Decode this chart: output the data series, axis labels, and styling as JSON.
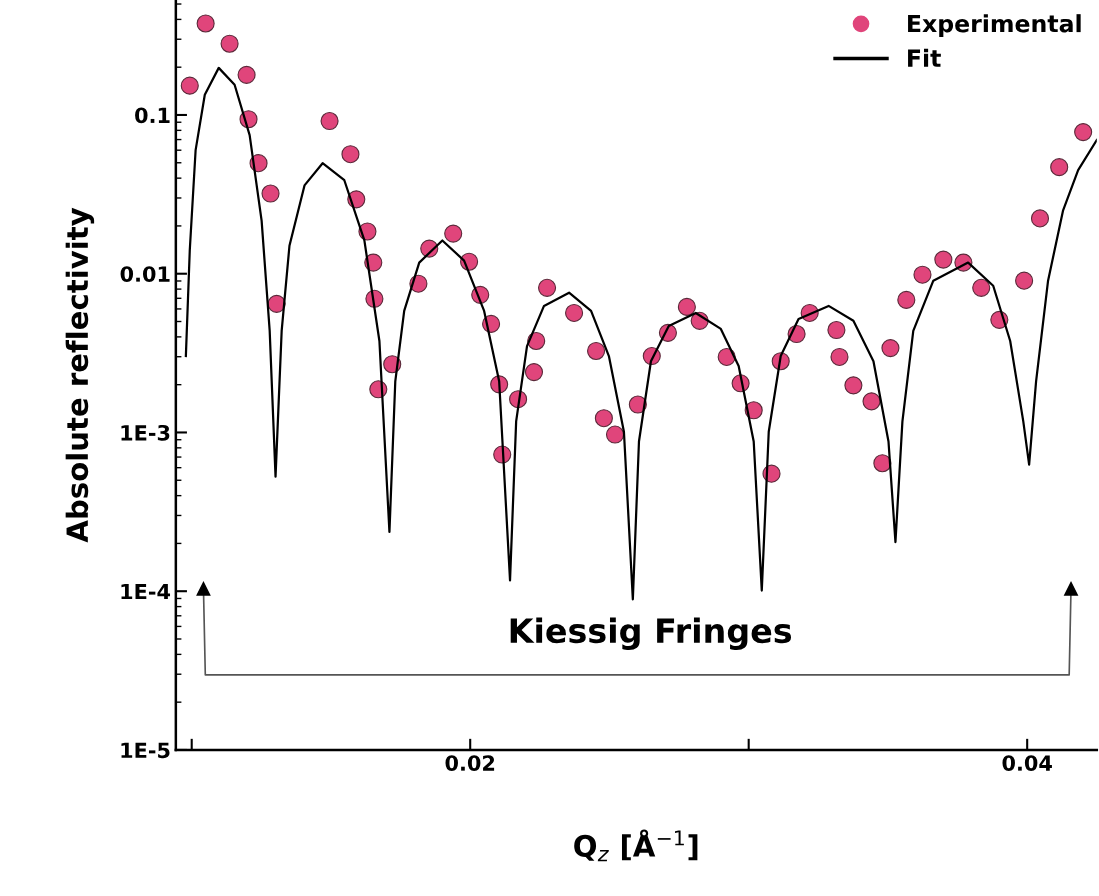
{
  "chart_data": {
    "type": "scatter",
    "xlabel": "Q$_{z}$ [Å$^{−1}$]",
    "ylabel": "Absolute reflectivity",
    "annotations": [
      "Kiessig Fringes"
    ],
    "log": "y",
    "xlim": [
      0.00943,
      0.0425
    ],
    "ylim": [
      1e-05,
      0.53
    ],
    "xticks": [
      {
        "value": 0.01,
        "label": null
      },
      0.02,
      {
        "value": 0.03,
        "label": null
      },
      0.04
    ],
    "yticks": [
      {
        "value": 1e-05,
        "label": "1E-5"
      },
      {
        "value": 0.0001,
        "label": "1E-4"
      },
      {
        "value": 0.001,
        "label": "1E-3"
      },
      0.01,
      0.1
    ],
    "grid": false,
    "legend": "top right",
    "marker": "circle",
    "series": [
      {
        "name": "Experimental",
        "color": "#e0457b",
        "x": [
          0.00993,
          0.0105,
          0.01136,
          0.01197,
          0.01204,
          0.0124,
          0.01283,
          0.01305,
          0.01495,
          0.0157,
          0.01591,
          0.01631,
          0.01652,
          0.01656,
          0.0167,
          0.0172,
          0.01814,
          0.01853,
          0.01939,
          0.01996,
          0.02036,
          0.02075,
          0.02104,
          0.02115,
          0.02172,
          0.02229,
          0.02237,
          0.02276,
          0.02373,
          0.02452,
          0.0248,
          0.0252,
          0.02602,
          0.02652,
          0.0271,
          0.02778,
          0.02824,
          0.02921,
          0.02971,
          0.03018,
          0.03082,
          0.03115,
          0.03172,
          0.03219,
          0.03315,
          0.03326,
          0.03376,
          0.03441,
          0.0348,
          0.03509,
          0.03566,
          0.03624,
          0.03699,
          0.03771,
          0.03835,
          0.039,
          0.03989,
          0.04046,
          0.04115,
          0.04201
        ],
        "values": [
          0.153,
          0.377,
          0.281,
          0.179,
          0.094,
          0.0497,
          0.032,
          0.00646,
          0.0916,
          0.0566,
          0.0294,
          0.01845,
          0.01175,
          0.00695,
          0.00187,
          0.00269,
          0.00865,
          0.0144,
          0.0179,
          0.0119,
          0.00736,
          0.00483,
          0.00201,
          0.000726,
          0.00162,
          0.0024,
          0.00377,
          0.00815,
          0.00566,
          0.00326,
          0.00123,
          0.00097,
          0.0015,
          0.00303,
          0.00424,
          0.00618,
          0.00505,
          0.00299,
          0.00204,
          0.00138,
          0.00055,
          0.00281,
          0.00417,
          0.00566,
          0.00442,
          0.00299,
          0.00198,
          0.00157,
          0.00064,
          0.0034,
          0.00684,
          0.00986,
          0.01227,
          0.01175,
          0.00815,
          0.00512,
          0.00904,
          0.0223,
          0.0469,
          0.078
        ]
      },
      {
        "name": "Fit",
        "type": "line",
        "color": "#000000",
        "marker": "none",
        "line_style": "solid",
        "x": [
          0.00979,
          0.00993,
          0.01014,
          0.01047,
          0.01097,
          0.01154,
          0.01208,
          0.01251,
          0.0128,
          0.01301,
          0.01323,
          0.01351,
          0.01405,
          0.0147,
          0.01548,
          0.0162,
          0.01674,
          0.0171,
          0.01731,
          0.01763,
          0.01817,
          0.019,
          0.01978,
          0.0205,
          0.02104,
          0.02143,
          0.02165,
          0.02204,
          0.02265,
          0.02355,
          0.02434,
          0.02498,
          0.02552,
          0.02584,
          0.02606,
          0.02649,
          0.02713,
          0.0281,
          0.029,
          0.02964,
          0.03018,
          0.03047,
          0.03072,
          0.03115,
          0.03179,
          0.03287,
          0.03376,
          0.03448,
          0.03502,
          0.03527,
          0.03552,
          0.03591,
          0.03663,
          0.03788,
          0.03878,
          0.03939,
          0.03986,
          0.04007,
          0.04032,
          0.04075,
          0.04129,
          0.04183,
          0.0425
        ],
        "values": [
          0.00303,
          0.014,
          0.06,
          0.134,
          0.198,
          0.155,
          0.0747,
          0.0216,
          0.00436,
          0.000527,
          0.00436,
          0.015,
          0.036,
          0.0497,
          0.0388,
          0.0162,
          0.00377,
          0.000236,
          0.0021,
          0.00583,
          0.01175,
          0.0162,
          0.0121,
          0.00583,
          0.0021,
          0.000117,
          0.001175,
          0.0035,
          0.00627,
          0.00759,
          0.00583,
          0.00303,
          0.00101,
          8.89e-05,
          0.000877,
          0.00281,
          0.00469,
          0.00566,
          0.00449,
          0.00262,
          0.000877,
          0.000101,
          0.00101,
          0.00303,
          0.00519,
          0.00627,
          0.00505,
          0.00281,
          0.000877,
          0.000204,
          0.001175,
          0.00436,
          0.00904,
          0.01175,
          0.0084,
          0.00377,
          0.001175,
          0.000627,
          0.0021,
          0.00904,
          0.0251,
          0.0449,
          0.0695
        ]
      }
    ]
  }
}
